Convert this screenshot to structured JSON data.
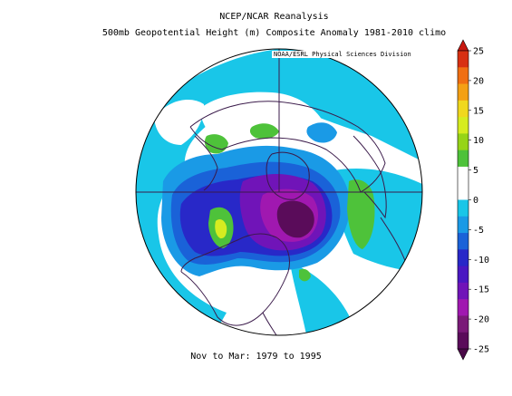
{
  "title_line1": "NCEP/NCAR Reanalysis",
  "title_line2": "500mb Geopotential Height (m) Composite Anomaly 1981-2010 climo",
  "credit": "NOAA/ESRL Physical Sciences Division",
  "footer": "Nov to Mar: 1979 to 1995",
  "colorbar": {
    "ticks": [
      "25",
      "20",
      "15",
      "10",
      "5",
      "0",
      "-5",
      "-10",
      "-15",
      "-20",
      "-25"
    ],
    "colors": [
      "#d83012",
      "#f06f12",
      "#f4a014",
      "#f0d81e",
      "#d6ec20",
      "#96d418",
      "#4ec23a",
      "#ffffff",
      "#ffffff",
      "#19c6e8",
      "#1a9ae6",
      "#1a62d8",
      "#2828c8",
      "#4a18c2",
      "#7014b8",
      "#a018b0",
      "#7a1a78",
      "#5a0c5a"
    ],
    "max_color": "#c81810",
    "min_color": "#4a0a48"
  },
  "map_colors": {
    "ocean_bg": "#ffffff",
    "light_blue": "#19c6e8",
    "mid_blue": "#1a9ae6",
    "blue": "#1a62d8",
    "indigo": "#2828c8",
    "violet": "#7014b8",
    "magenta": "#a018b0",
    "dark_purple": "#5a0c5a",
    "green": "#4ec23a",
    "yellow_green": "#d6ec20",
    "coast": "#3a1a4a"
  }
}
